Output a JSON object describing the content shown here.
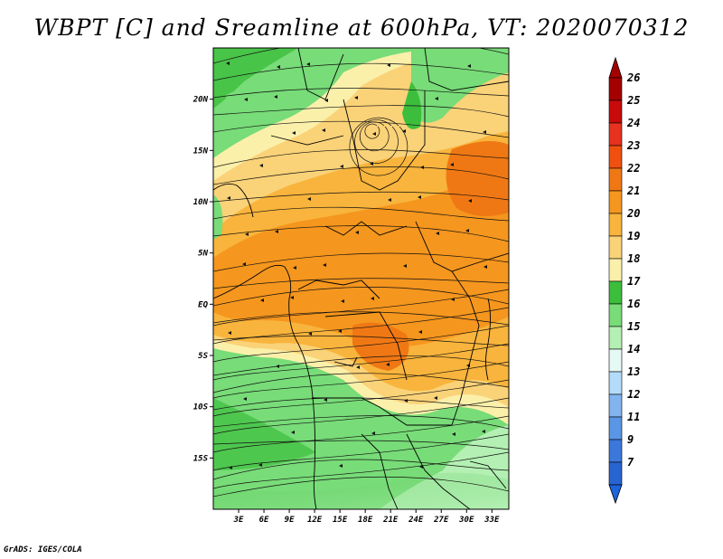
{
  "title": "WBPT [C] and Sreamline at 600hPa, VT: 2020070312",
  "credit": "GrADS: IGES/COLA",
  "map": {
    "lon_range": [
      0,
      35
    ],
    "lat_range": [
      -20,
      25
    ],
    "lat_ticks": [
      {
        "value": 20,
        "label": "20N"
      },
      {
        "value": 15,
        "label": "15N"
      },
      {
        "value": 10,
        "label": "10N"
      },
      {
        "value": 5,
        "label": "5N"
      },
      {
        "value": 0,
        "label": "EQ"
      },
      {
        "value": -5,
        "label": "5S"
      },
      {
        "value": -10,
        "label": "10S"
      },
      {
        "value": -15,
        "label": "15S"
      }
    ],
    "lon_ticks": [
      {
        "value": 3,
        "label": "3E"
      },
      {
        "value": 6,
        "label": "6E"
      },
      {
        "value": 9,
        "label": "9E"
      },
      {
        "value": 12,
        "label": "12E"
      },
      {
        "value": 15,
        "label": "15E"
      },
      {
        "value": 18,
        "label": "18E"
      },
      {
        "value": 21,
        "label": "21E"
      },
      {
        "value": 24,
        "label": "24E"
      },
      {
        "value": 27,
        "label": "27E"
      },
      {
        "value": 30,
        "label": "30E"
      },
      {
        "value": 33,
        "label": "33E"
      }
    ]
  },
  "colorbar": {
    "levels": [
      {
        "label": "26",
        "color": "#a50000"
      },
      {
        "label": "25",
        "color": "#c80a0a"
      },
      {
        "label": "24",
        "color": "#e6321e"
      },
      {
        "label": "23",
        "color": "#f0500f"
      },
      {
        "label": "22",
        "color": "#f07814"
      },
      {
        "label": "21",
        "color": "#f5961e"
      },
      {
        "label": "20",
        "color": "#f8b43c"
      },
      {
        "label": "19",
        "color": "#fad278"
      },
      {
        "label": "18",
        "color": "#fbf0aa"
      },
      {
        "label": "17",
        "color": "#3cbe3c"
      },
      {
        "label": "16",
        "color": "#78dc78"
      },
      {
        "label": "15",
        "color": "#b4f0b4"
      },
      {
        "label": "14",
        "color": "#e6faf5"
      },
      {
        "label": "13",
        "color": "#b4dcfa"
      },
      {
        "label": "12",
        "color": "#82b4f0"
      },
      {
        "label": "11",
        "color": "#5a96e6"
      },
      {
        "label": "9",
        "color": "#3c78dc"
      },
      {
        "label": "7",
        "color": "#2864d2"
      }
    ],
    "top_color": "#a50000",
    "bottom_color": "#1e64dc"
  }
}
